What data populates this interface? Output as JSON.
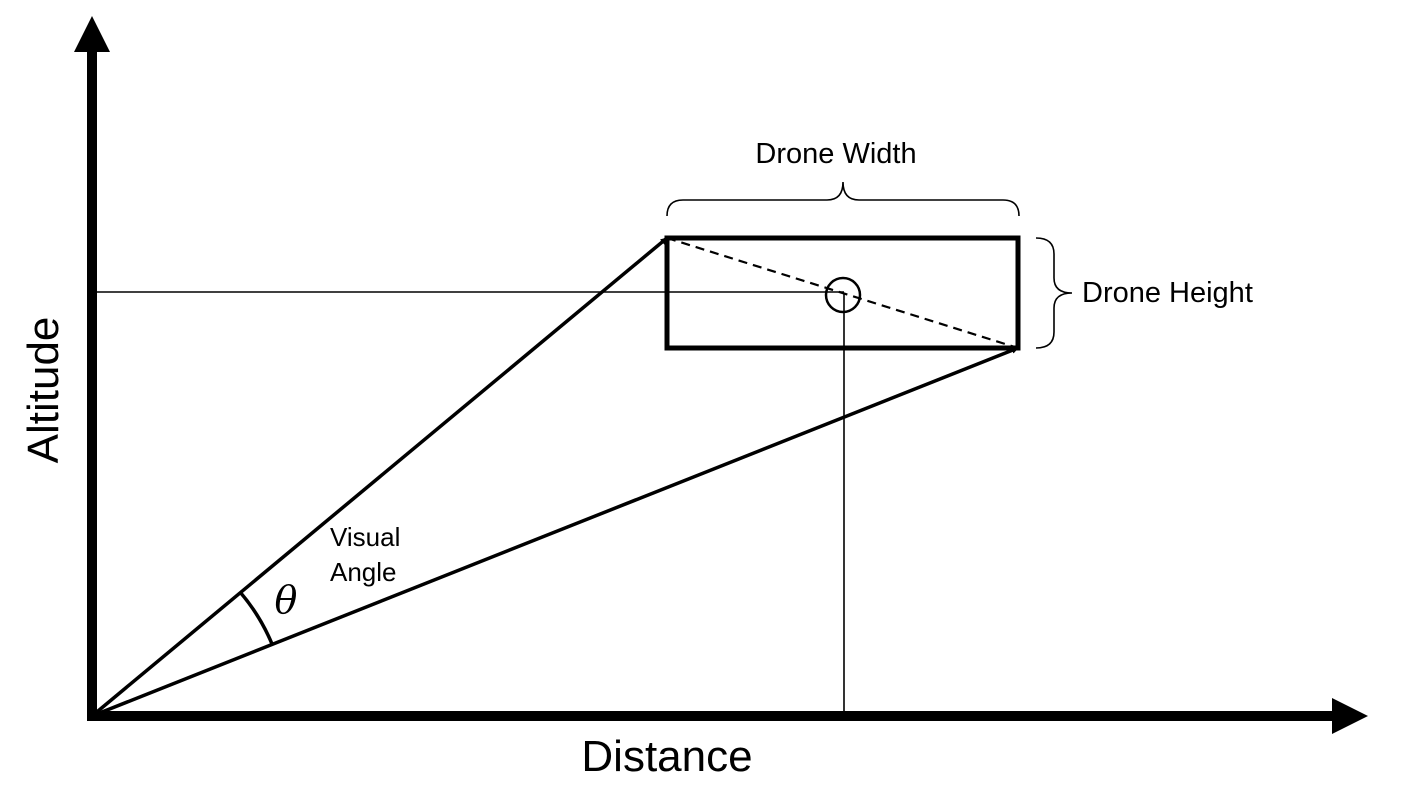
{
  "diagram": {
    "axis_labels": {
      "x": "Distance",
      "y": "Altitude"
    },
    "drone": {
      "width_label": "Drone Width",
      "height_label": "Drone Height"
    },
    "angle": {
      "label_line1": "Visual",
      "label_line2": "Angle",
      "symbol": "θ"
    },
    "colors": {
      "stroke": "#000000",
      "background": "#ffffff"
    }
  }
}
